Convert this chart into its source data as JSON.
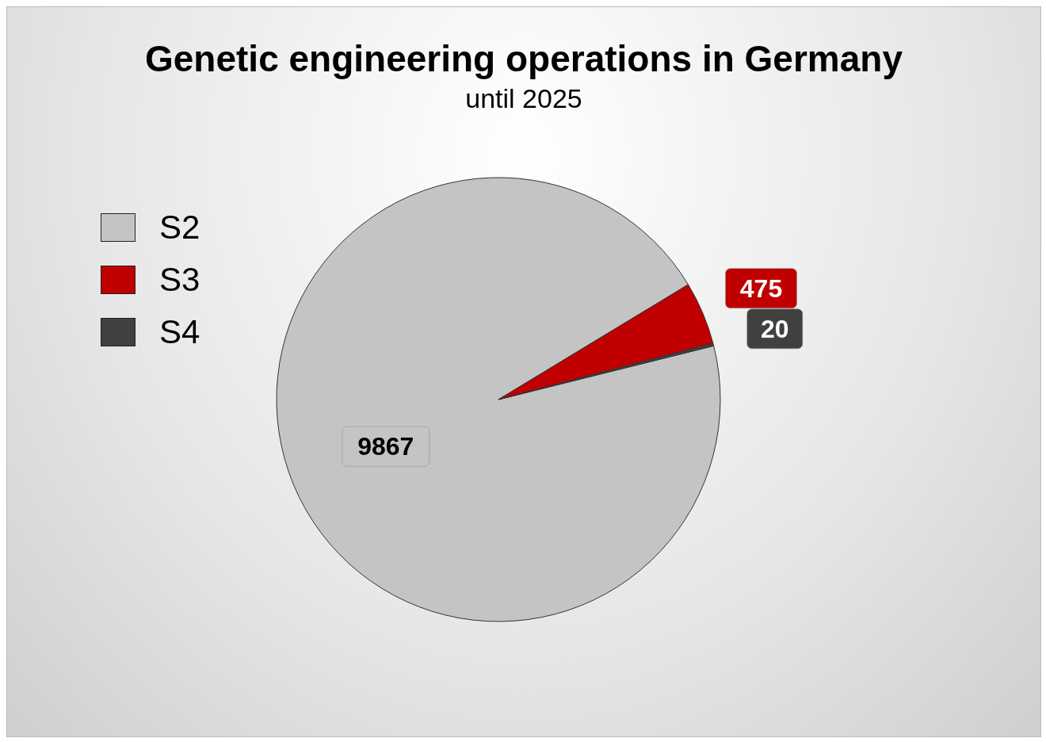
{
  "chart_data": {
    "type": "pie",
    "title": "Genetic engineering operations in Germany",
    "subtitle": "until 2025",
    "categories": [
      "S2",
      "S3",
      "S4"
    ],
    "values": [
      9867,
      475,
      20
    ],
    "colors": [
      "#c4c4c4",
      "#c00000",
      "#404040"
    ],
    "data_labels": true,
    "legend": "left"
  }
}
